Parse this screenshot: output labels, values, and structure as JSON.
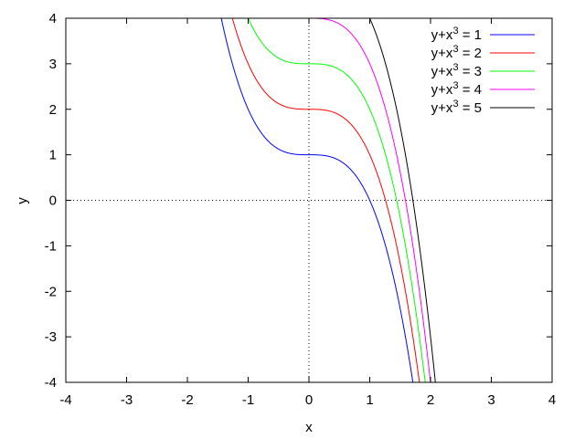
{
  "chart_data": {
    "type": "line",
    "title": "",
    "xlabel": "x",
    "ylabel": "y",
    "xlim": [
      -4,
      4
    ],
    "ylim": [
      -4,
      4
    ],
    "xticks": [
      "-4",
      "-3",
      "-2",
      "-1",
      "0",
      "1",
      "2",
      "3",
      "4"
    ],
    "yticks": [
      "-4",
      "-3",
      "-2",
      "-1",
      "0",
      "1",
      "2",
      "3",
      "4"
    ],
    "zero_axes": "dotted",
    "grid": false,
    "legend_position": "top-right",
    "series": [
      {
        "name": "y+x3 = 1",
        "lhs": "y+x",
        "sup": "3",
        "rhs": " = 1",
        "c": 1,
        "color": "#0000ff"
      },
      {
        "name": "y+x3 = 2",
        "lhs": "y+x",
        "sup": "3",
        "rhs": " = 2",
        "c": 2,
        "color": "#ff0000"
      },
      {
        "name": "y+x3 = 3",
        "lhs": "y+x",
        "sup": "3",
        "rhs": " = 3",
        "c": 3,
        "color": "#00ff00"
      },
      {
        "name": "y+x3 = 4",
        "lhs": "y+x",
        "sup": "3",
        "rhs": " = 4",
        "c": 4,
        "color": "#ff00ff"
      },
      {
        "name": "y+x3 = 5",
        "lhs": "y+x",
        "sup": "3",
        "rhs": " = 5",
        "c": 5,
        "color": "#000000"
      }
    ]
  }
}
